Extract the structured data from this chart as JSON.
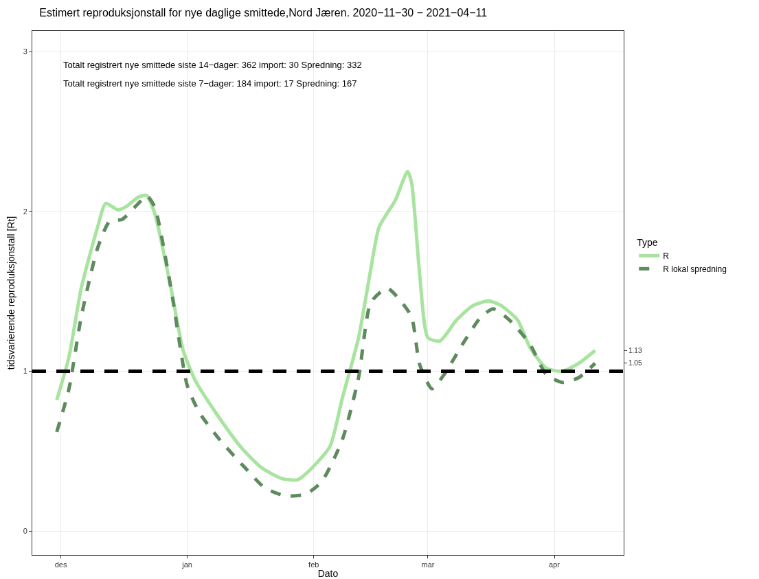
{
  "chart_data": {
    "type": "line",
    "title": "Estimert reproduksjonstall for nye daglige smittede,Nord Jæren. 2020−11−30 − 2021−04−11",
    "xlabel": "Dato",
    "ylabel": "tidsvarierende reproduksjonstall [Rt]",
    "legend_title": "Type",
    "legend": "right",
    "grid": true,
    "marker": "none",
    "annotations": [
      "Totalt registrert nye smittede siste 14−dager: 362 import: 30 Spredning: 332",
      "Totalt registrert nye smittede siste 7−dager: 184 import: 17 Spredning: 167"
    ],
    "xlim": [
      "2020-11-24",
      "2021-04-18"
    ],
    "xticks": [
      {
        "value": "2020-12-01",
        "label": "des"
      },
      {
        "value": "2021-01-01",
        "label": "jan"
      },
      {
        "value": "2021-02-01",
        "label": "feb"
      },
      {
        "value": "2021-03-01",
        "label": "mar"
      },
      {
        "value": "2021-04-01",
        "label": "apr"
      }
    ],
    "ylim": [
      -0.15,
      3.13
    ],
    "yticks": [
      0,
      1,
      2,
      3
    ],
    "y2lim": [
      -0.15,
      3.13
    ],
    "y2ticks": [
      1.13,
      1.05
    ],
    "ref_lines": [
      {
        "axis": "y",
        "value": 1,
        "color": "#000000",
        "line_style": "dashed"
      }
    ],
    "series": [
      {
        "name": "R",
        "color": "#a8e4a0",
        "line_style": "solid",
        "x": [
          "2020-11-30",
          "2020-12-03",
          "2020-12-06",
          "2020-12-10",
          "2020-12-12",
          "2020-12-15",
          "2020-12-17",
          "2020-12-20",
          "2020-12-22",
          "2020-12-24",
          "2020-12-28",
          "2020-12-31",
          "2021-01-03",
          "2021-01-08",
          "2021-01-14",
          "2021-01-19",
          "2021-01-24",
          "2021-01-28",
          "2021-01-31",
          "2021-02-05",
          "2021-02-08",
          "2021-02-12",
          "2021-02-15",
          "2021-02-17",
          "2021-02-21",
          "2021-02-24",
          "2021-02-25",
          "2021-02-27",
          "2021-03-01",
          "2021-03-04",
          "2021-03-08",
          "2021-03-12",
          "2021-03-16",
          "2021-03-19",
          "2021-03-23",
          "2021-03-26",
          "2021-03-30",
          "2021-04-03",
          "2021-04-07",
          "2021-04-11"
        ],
        "values": [
          0.82,
          1.09,
          1.52,
          1.9,
          2.05,
          2.01,
          2.03,
          2.09,
          2.1,
          1.99,
          1.52,
          1.13,
          0.94,
          0.74,
          0.53,
          0.4,
          0.33,
          0.32,
          0.38,
          0.53,
          0.83,
          1.21,
          1.64,
          1.9,
          2.07,
          2.25,
          2.18,
          1.6,
          1.21,
          1.19,
          1.32,
          1.41,
          1.44,
          1.41,
          1.32,
          1.15,
          1.02,
          1.0,
          1.05,
          1.13
        ]
      },
      {
        "name": "R lokal spredning",
        "color": "#5e8a5e",
        "line_style": "dashed",
        "x": [
          "2020-11-30",
          "2020-12-03",
          "2020-12-06",
          "2020-12-10",
          "2020-12-13",
          "2020-12-16",
          "2020-12-20",
          "2020-12-22",
          "2020-12-24",
          "2020-12-28",
          "2021-01-01",
          "2021-01-04",
          "2021-01-09",
          "2021-01-15",
          "2021-01-20",
          "2021-01-25",
          "2021-01-30",
          "2021-02-03",
          "2021-02-08",
          "2021-02-12",
          "2021-02-15",
          "2021-02-19",
          "2021-02-22",
          "2021-02-25",
          "2021-02-27",
          "2021-03-02",
          "2021-03-05",
          "2021-03-10",
          "2021-03-14",
          "2021-03-17",
          "2021-03-21",
          "2021-03-26",
          "2021-03-30",
          "2021-04-03",
          "2021-04-07",
          "2021-04-11"
        ],
        "values": [
          0.62,
          0.89,
          1.34,
          1.77,
          1.94,
          1.95,
          2.05,
          2.1,
          2.03,
          1.52,
          0.91,
          0.74,
          0.57,
          0.4,
          0.27,
          0.22,
          0.23,
          0.31,
          0.57,
          0.96,
          1.43,
          1.52,
          1.45,
          1.34,
          1.04,
          0.89,
          0.98,
          1.19,
          1.34,
          1.39,
          1.32,
          1.17,
          0.98,
          0.93,
          0.96,
          1.05
        ]
      }
    ]
  }
}
